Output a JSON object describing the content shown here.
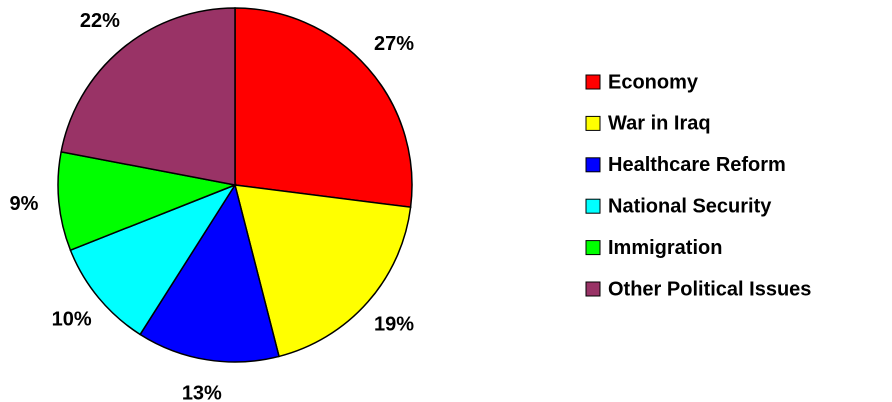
{
  "chart_data": {
    "type": "pie",
    "categories": [
      "Economy",
      "War in Iraq",
      "Healthcare Reform",
      "National Security",
      "Immigration",
      "Other Political Issues"
    ],
    "values": [
      27,
      19,
      13,
      10,
      9,
      22
    ],
    "value_labels": [
      "27%",
      "19%",
      "13%",
      "10%",
      "9%",
      "22%"
    ],
    "colors": [
      "#ff0000",
      "#ffff00",
      "#0000ff",
      "#00ffff",
      "#00ff00",
      "#993366"
    ],
    "legend": "right"
  }
}
